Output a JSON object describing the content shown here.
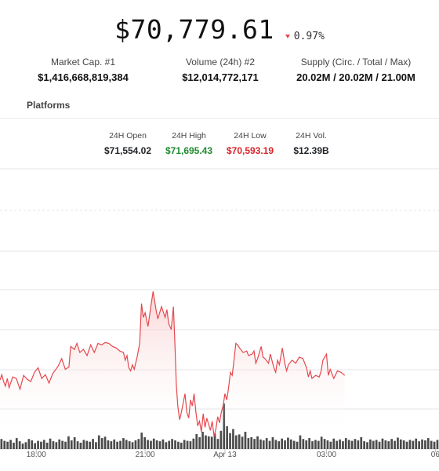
{
  "header": {
    "price": "$70,779.61",
    "change_percent": "0.97%",
    "change_direction": "down",
    "down_color": "#e5484d"
  },
  "stats": [
    {
      "label": "Market Cap. #1",
      "value": "$1,416,668,819,384"
    },
    {
      "label": "Volume (24h) #2",
      "value": "$12,014,772,171"
    },
    {
      "label": "Supply (Circ. / Total / Max)",
      "value": "20.02M / 20.02M / 21.00M"
    }
  ],
  "platforms_label": "Platforms",
  "ohlc": {
    "open": {
      "label": "24H Open",
      "value": "$71,554.02"
    },
    "high": {
      "label": "24H High",
      "value": "$71,695.43",
      "color": "#1f8a2e"
    },
    "low": {
      "label": "24H Low",
      "value": "$70,593.19",
      "color": "#d8232a"
    },
    "vol": {
      "label": "24H Vol.",
      "value": "$12.39B"
    }
  },
  "chart_data": {
    "type": "area",
    "x_tick_labels": [
      "18:00",
      "21:00",
      "Apr 13",
      "03:00",
      "06"
    ],
    "x_tick_positions": [
      2,
      5,
      7.2,
      10,
      13
    ],
    "x_range": [
      1.0,
      13.1
    ],
    "y_range": [
      70380,
      71880
    ],
    "grid": true,
    "line_color": "#e5484d",
    "price": [
      [
        1.0,
        70770
      ],
      [
        1.05,
        70805
      ],
      [
        1.1,
        70760
      ],
      [
        1.15,
        70730
      ],
      [
        1.2,
        70780
      ],
      [
        1.25,
        70720
      ],
      [
        1.35,
        70790
      ],
      [
        1.45,
        70780
      ],
      [
        1.55,
        70710
      ],
      [
        1.65,
        70800
      ],
      [
        1.75,
        70775
      ],
      [
        1.85,
        70760
      ],
      [
        1.95,
        70820
      ],
      [
        2.05,
        70850
      ],
      [
        2.15,
        70780
      ],
      [
        2.25,
        70805
      ],
      [
        2.35,
        70750
      ],
      [
        2.45,
        70810
      ],
      [
        2.6,
        70860
      ],
      [
        2.7,
        70910
      ],
      [
        2.8,
        70840
      ],
      [
        2.9,
        70855
      ],
      [
        2.95,
        70990
      ],
      [
        3.05,
        70970
      ],
      [
        3.12,
        71010
      ],
      [
        3.2,
        70950
      ],
      [
        3.3,
        70970
      ],
      [
        3.4,
        70930
      ],
      [
        3.5,
        71000
      ],
      [
        3.6,
        70950
      ],
      [
        3.7,
        71010
      ],
      [
        3.8,
        71000
      ],
      [
        3.9,
        71015
      ],
      [
        4.0,
        71010
      ],
      [
        4.1,
        70990
      ],
      [
        4.2,
        70980
      ],
      [
        4.3,
        70960
      ],
      [
        4.4,
        70950
      ],
      [
        4.45,
        70900
      ],
      [
        4.5,
        70930
      ],
      [
        4.55,
        70850
      ],
      [
        4.6,
        70830
      ],
      [
        4.65,
        70870
      ],
      [
        4.7,
        70840
      ],
      [
        4.78,
        70920
      ],
      [
        4.85,
        71010
      ],
      [
        4.9,
        71270
      ],
      [
        4.95,
        71180
      ],
      [
        5.0,
        71210
      ],
      [
        5.08,
        71120
      ],
      [
        5.15,
        71240
      ],
      [
        5.22,
        71350
      ],
      [
        5.3,
        71230
      ],
      [
        5.35,
        71170
      ],
      [
        5.45,
        71250
      ],
      [
        5.55,
        71180
      ],
      [
        5.6,
        71230
      ],
      [
        5.65,
        71140
      ],
      [
        5.72,
        71100
      ],
      [
        5.78,
        71250
      ],
      [
        5.82,
        71010
      ],
      [
        5.86,
        70740
      ],
      [
        5.9,
        70600
      ],
      [
        5.95,
        70510
      ],
      [
        6.0,
        70560
      ],
      [
        6.05,
        70620
      ],
      [
        6.1,
        70680
      ],
      [
        6.15,
        70560
      ],
      [
        6.2,
        70520
      ],
      [
        6.25,
        70640
      ],
      [
        6.3,
        70600
      ],
      [
        6.35,
        70680
      ],
      [
        6.4,
        70560
      ],
      [
        6.45,
        70470
      ],
      [
        6.5,
        70500
      ],
      [
        6.55,
        70430
      ],
      [
        6.6,
        70550
      ],
      [
        6.65,
        70460
      ],
      [
        6.7,
        70520
      ],
      [
        6.75,
        70480
      ],
      [
        6.8,
        70440
      ],
      [
        6.85,
        70500
      ],
      [
        6.9,
        70400
      ],
      [
        6.95,
        70450
      ],
      [
        7.0,
        70530
      ],
      [
        7.05,
        70490
      ],
      [
        7.1,
        70560
      ],
      [
        7.15,
        70600
      ],
      [
        7.2,
        70680
      ],
      [
        7.25,
        70640
      ],
      [
        7.3,
        70720
      ],
      [
        7.35,
        70820
      ],
      [
        7.4,
        70800
      ],
      [
        7.45,
        70900
      ],
      [
        7.5,
        71010
      ],
      [
        7.55,
        71000
      ],
      [
        7.6,
        70980
      ],
      [
        7.7,
        70950
      ],
      [
        7.8,
        70960
      ],
      [
        7.85,
        70930
      ],
      [
        7.95,
        70940
      ],
      [
        8.0,
        70960
      ],
      [
        8.05,
        70880
      ],
      [
        8.1,
        70910
      ],
      [
        8.15,
        70950
      ],
      [
        8.2,
        70990
      ],
      [
        8.25,
        70920
      ],
      [
        8.3,
        70910
      ],
      [
        8.4,
        70880
      ],
      [
        8.45,
        70940
      ],
      [
        8.55,
        70850
      ],
      [
        8.6,
        70820
      ],
      [
        8.65,
        70900
      ],
      [
        8.7,
        70870
      ],
      [
        8.78,
        70980
      ],
      [
        8.85,
        70880
      ],
      [
        8.9,
        70830
      ],
      [
        8.95,
        70870
      ],
      [
        9.05,
        70900
      ],
      [
        9.15,
        70880
      ],
      [
        9.25,
        70920
      ],
      [
        9.35,
        70910
      ],
      [
        9.45,
        70850
      ],
      [
        9.5,
        70790
      ],
      [
        9.55,
        70830
      ],
      [
        9.6,
        70780
      ],
      [
        9.7,
        70800
      ],
      [
        9.8,
        70790
      ],
      [
        9.85,
        70830
      ],
      [
        9.9,
        70900
      ],
      [
        9.95,
        70920
      ],
      [
        10.0,
        70940
      ],
      [
        10.05,
        70800
      ],
      [
        10.1,
        70840
      ],
      [
        10.2,
        70780
      ],
      [
        10.3,
        70830
      ],
      [
        10.4,
        70820
      ],
      [
        10.5,
        70800
      ]
    ],
    "volume": [
      0.22,
      0.18,
      0.16,
      0.2,
      0.14,
      0.24,
      0.17,
      0.12,
      0.15,
      0.22,
      0.19,
      0.13,
      0.18,
      0.16,
      0.2,
      0.14,
      0.23,
      0.17,
      0.15,
      0.21,
      0.18,
      0.16,
      0.28,
      0.19,
      0.26,
      0.17,
      0.14,
      0.2,
      0.18,
      0.16,
      0.22,
      0.15,
      0.3,
      0.24,
      0.27,
      0.19,
      0.17,
      0.21,
      0.16,
      0.18,
      0.24,
      0.2,
      0.17,
      0.15,
      0.19,
      0.22,
      0.36,
      0.26,
      0.2,
      0.18,
      0.23,
      0.19,
      0.17,
      0.21,
      0.15,
      0.18,
      0.22,
      0.19,
      0.16,
      0.14,
      0.2,
      0.18,
      0.17,
      0.23,
      0.33,
      0.26,
      0.38,
      0.3,
      0.28,
      0.27,
      0.34,
      0.22,
      0.4,
      1.0,
      0.5,
      0.35,
      0.44,
      0.3,
      0.32,
      0.27,
      0.38,
      0.24,
      0.26,
      0.22,
      0.28,
      0.21,
      0.19,
      0.24,
      0.18,
      0.26,
      0.2,
      0.17,
      0.23,
      0.19,
      0.25,
      0.21,
      0.18,
      0.16,
      0.3,
      0.22,
      0.19,
      0.24,
      0.17,
      0.2,
      0.18,
      0.27,
      0.22,
      0.19,
      0.16,
      0.23,
      0.18,
      0.21,
      0.17,
      0.24,
      0.2,
      0.18,
      0.22,
      0.19,
      0.26,
      0.17,
      0.15,
      0.21,
      0.18,
      0.2,
      0.16,
      0.23,
      0.19,
      0.17,
      0.22,
      0.18,
      0.25,
      0.21,
      0.19,
      0.16,
      0.2,
      0.18,
      0.23,
      0.17,
      0.21,
      0.19,
      0.24,
      0.18,
      0.16,
      0.2
    ],
    "volume_color": "#4a4a4a"
  }
}
